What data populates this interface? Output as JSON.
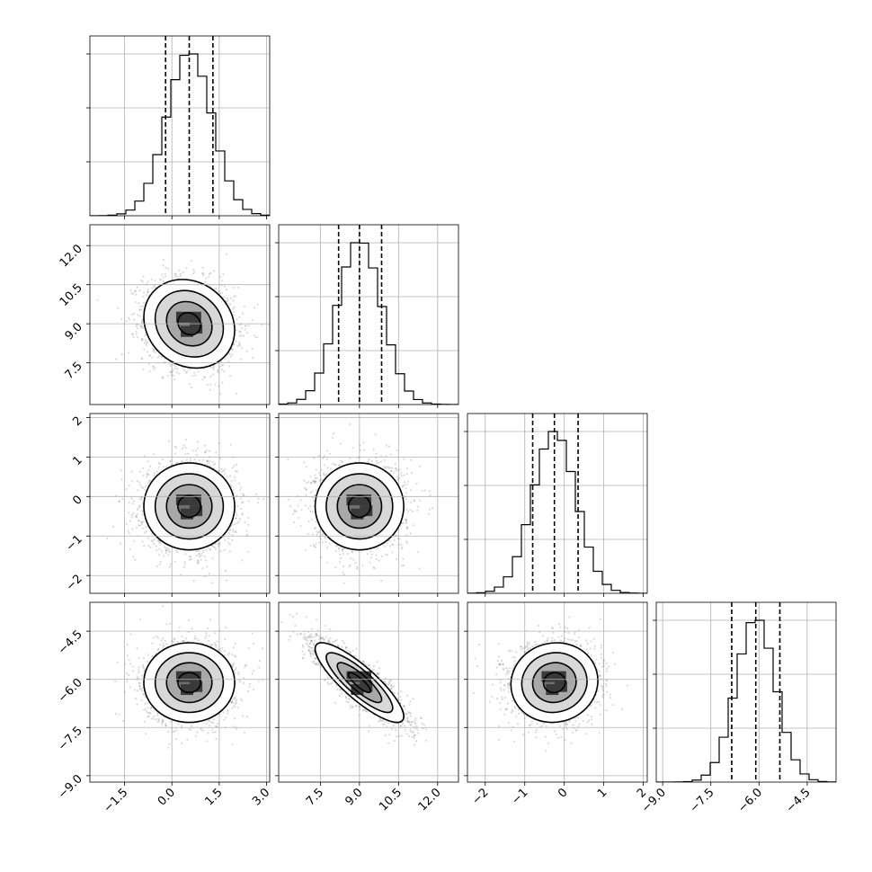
{
  "chart_data": {
    "type": "corner",
    "grid": true,
    "dimensions": 4,
    "params": [
      {
        "mean": 0.55,
        "sd": 0.72,
        "range": [
          -2.6,
          3.1
        ],
        "ticks": [
          -1.5,
          0.0,
          1.5,
          3.0
        ],
        "tick_labels": [
          "−1.5",
          "0.0",
          "1.5",
          "3.0"
        ],
        "quantiles": [
          -0.2,
          0.55,
          1.3
        ]
      },
      {
        "mean": 9.0,
        "sd": 0.85,
        "range": [
          5.9,
          12.8
        ],
        "ticks": [
          7.5,
          9.0,
          10.5,
          12.0
        ],
        "tick_labels": [
          "7.5",
          "9.0",
          "10.5",
          "12.0"
        ],
        "quantiles": [
          8.2,
          9.0,
          9.85
        ]
      },
      {
        "mean": -0.25,
        "sd": 0.55,
        "range": [
          -2.45,
          2.1
        ],
        "ticks": [
          -2,
          -1,
          0,
          1,
          2
        ],
        "tick_labels": [
          "−2",
          "−1",
          "0",
          "1",
          "2"
        ],
        "quantiles": [
          -0.8,
          -0.25,
          0.35
        ]
      },
      {
        "mean": -6.1,
        "sd": 0.62,
        "range": [
          -9.2,
          -3.6
        ],
        "ticks": [
          -9.0,
          -7.5,
          -6.0,
          -4.5
        ],
        "tick_labels": [
          "−9.0",
          "−7.5",
          "−6.0",
          "−4.5"
        ],
        "quantiles": [
          -6.85,
          -6.1,
          -5.35
        ]
      }
    ],
    "correlations": [
      {
        "pair": [
          0,
          1
        ],
        "rho": -0.15
      },
      {
        "pair": [
          0,
          2
        ],
        "rho": 0.0
      },
      {
        "pair": [
          1,
          2
        ],
        "rho": 0.0
      },
      {
        "pair": [
          0,
          3
        ],
        "rho": 0.0
      },
      {
        "pair": [
          1,
          3
        ],
        "rho": -0.85
      },
      {
        "pair": [
          2,
          3
        ],
        "rho": 0.05
      }
    ],
    "contour_levels_sigma": [
      0.5,
      1.0,
      1.5,
      2.0
    ]
  }
}
